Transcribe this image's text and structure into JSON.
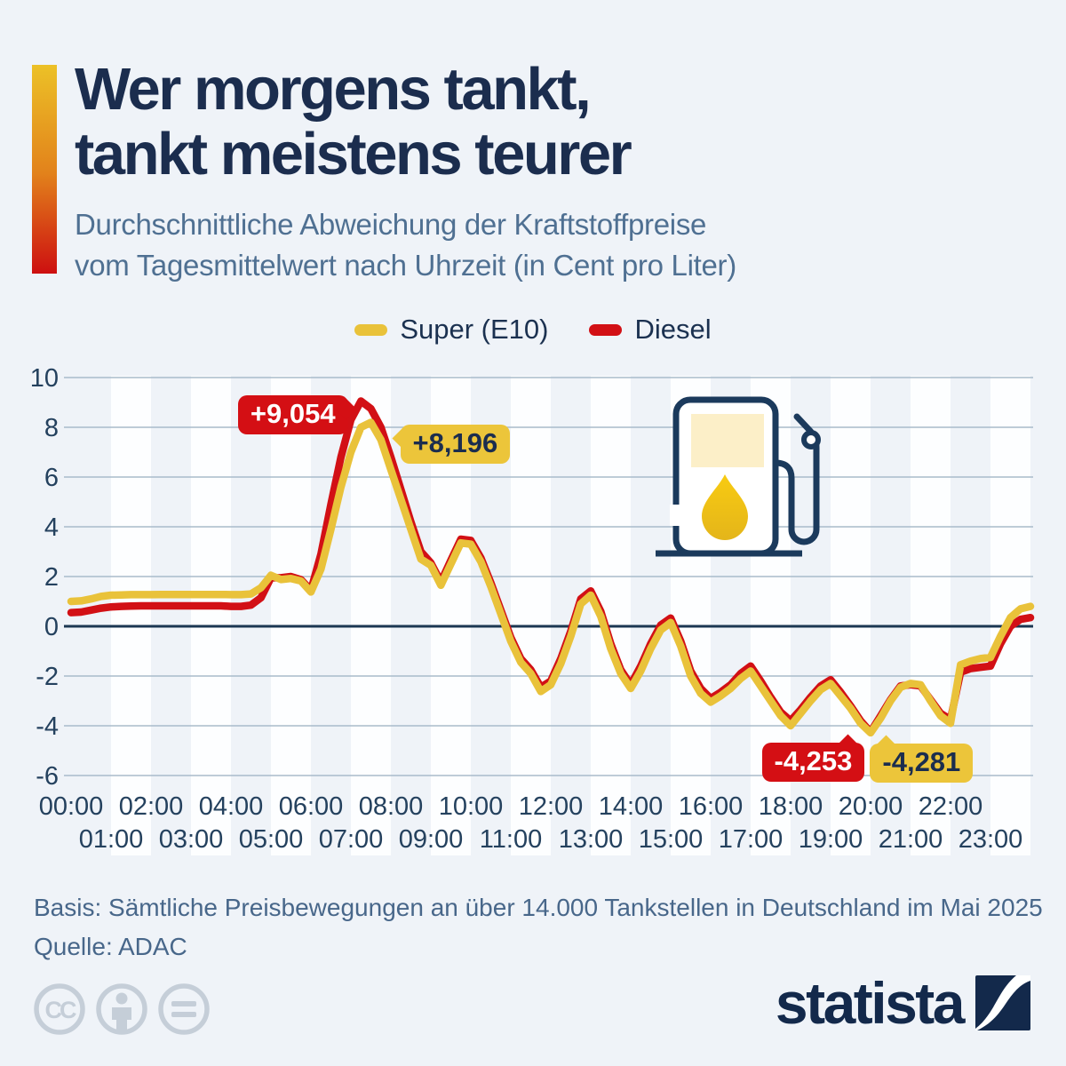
{
  "header": {
    "title_lines": [
      "Wer morgens tankt,",
      "tankt meistens teurer"
    ],
    "subtitle_lines": [
      "Durchschnittliche Abweichung der Kraftstoffpreise",
      "vom Tagesmittelwert nach Uhrzeit (in Cent pro Liter)"
    ]
  },
  "legend": {
    "items": [
      {
        "label": "Super (E10)",
        "color": "#e9c23a"
      },
      {
        "label": "Diesel",
        "color": "#d21015"
      }
    ]
  },
  "chart_data": {
    "type": "line",
    "title": "Durchschnittliche Abweichung der Kraftstoffpreise vom Tagesmittelwert nach Uhrzeit (in Cent pro Liter)",
    "x_unit": "hour_of_day",
    "ylim": [
      -6,
      10
    ],
    "yticks": [
      10,
      8,
      6,
      4,
      2,
      0,
      -2,
      -4,
      -6
    ],
    "xticks": [
      "00:00",
      "01:00",
      "02:00",
      "03:00",
      "04:00",
      "05:00",
      "06:00",
      "07:00",
      "08:00",
      "09:00",
      "10:00",
      "11:00",
      "12:00",
      "13:00",
      "14:00",
      "15:00",
      "16:00",
      "17:00",
      "18:00",
      "19:00",
      "20:00",
      "21:00",
      "22:00",
      "23:00"
    ],
    "grid": true,
    "legend_position": "top-center",
    "x": [
      0,
      0.25,
      0.5,
      0.75,
      1,
      1.25,
      1.5,
      1.75,
      2,
      2.25,
      2.5,
      2.75,
      3,
      3.25,
      3.5,
      3.75,
      4,
      4.25,
      4.5,
      4.75,
      5,
      5.25,
      5.5,
      5.75,
      6,
      6.25,
      6.5,
      6.75,
      7,
      7.25,
      7.5,
      7.75,
      8,
      8.25,
      8.5,
      8.75,
      9,
      9.25,
      9.5,
      9.75,
      10,
      10.25,
      10.5,
      10.75,
      11,
      11.25,
      11.5,
      11.75,
      12,
      12.25,
      12.5,
      12.75,
      13,
      13.25,
      13.5,
      13.75,
      14,
      14.25,
      14.5,
      14.75,
      15,
      15.25,
      15.5,
      15.75,
      16,
      16.25,
      16.5,
      16.75,
      17,
      17.25,
      17.5,
      17.75,
      18,
      18.25,
      18.5,
      18.75,
      19,
      19.25,
      19.5,
      19.75,
      20,
      20.25,
      20.5,
      20.75,
      21,
      21.25,
      21.5,
      21.75,
      22,
      22.25,
      22.5,
      22.75,
      23,
      23.25,
      23.5,
      23.75,
      24
    ],
    "series": [
      {
        "name": "Diesel",
        "color": "#d21015",
        "values": [
          0.55,
          0.57,
          0.65,
          0.73,
          0.78,
          0.8,
          0.81,
          0.82,
          0.82,
          0.82,
          0.82,
          0.82,
          0.82,
          0.82,
          0.82,
          0.82,
          0.8,
          0.8,
          0.85,
          1.15,
          1.95,
          1.95,
          2.0,
          1.87,
          1.45,
          2.9,
          4.9,
          6.8,
          8.3,
          9.054,
          8.75,
          8.0,
          6.8,
          5.5,
          4.2,
          3.0,
          2.55,
          1.78,
          2.65,
          3.5,
          3.45,
          2.75,
          1.75,
          0.65,
          -0.45,
          -1.3,
          -1.75,
          -2.45,
          -2.2,
          -1.3,
          -0.2,
          1.1,
          1.42,
          0.6,
          -0.7,
          -1.75,
          -2.35,
          -1.6,
          -0.7,
          0.05,
          0.33,
          -0.6,
          -1.8,
          -2.5,
          -2.9,
          -2.65,
          -2.35,
          -1.9,
          -1.6,
          -2.2,
          -2.85,
          -3.45,
          -3.8,
          -3.35,
          -2.85,
          -2.4,
          -2.15,
          -2.65,
          -3.2,
          -3.8,
          -4.253,
          -3.6,
          -2.95,
          -2.4,
          -2.35,
          -2.4,
          -2.95,
          -3.5,
          -3.75,
          -1.85,
          -1.7,
          -1.65,
          -1.6,
          -0.7,
          0.0,
          0.28,
          0.35
        ]
      },
      {
        "name": "Super (E10)",
        "color": "#e9c23a",
        "values": [
          1.0,
          1.02,
          1.1,
          1.2,
          1.25,
          1.26,
          1.27,
          1.27,
          1.27,
          1.28,
          1.28,
          1.28,
          1.28,
          1.28,
          1.28,
          1.28,
          1.27,
          1.27,
          1.3,
          1.55,
          2.05,
          1.88,
          1.92,
          1.82,
          1.38,
          2.3,
          3.9,
          5.6,
          7.0,
          8.0,
          8.196,
          7.5,
          6.3,
          5.1,
          3.9,
          2.7,
          2.45,
          1.65,
          2.5,
          3.35,
          3.3,
          2.6,
          1.6,
          0.5,
          -0.6,
          -1.45,
          -1.9,
          -2.62,
          -2.35,
          -1.5,
          -0.4,
          0.9,
          1.25,
          0.4,
          -0.9,
          -1.9,
          -2.5,
          -1.8,
          -0.9,
          -0.15,
          0.15,
          -0.8,
          -2.0,
          -2.7,
          -3.05,
          -2.8,
          -2.5,
          -2.1,
          -1.8,
          -2.4,
          -3.0,
          -3.6,
          -4.0,
          -3.5,
          -3.0,
          -2.55,
          -2.3,
          -2.8,
          -3.3,
          -3.9,
          -4.281,
          -3.7,
          -3.0,
          -2.45,
          -2.3,
          -2.35,
          -3.0,
          -3.6,
          -3.9,
          -1.55,
          -1.4,
          -1.3,
          -1.25,
          -0.4,
          0.35,
          0.7,
          0.8
        ]
      }
    ],
    "annotations": [
      {
        "text": "+9,054",
        "series": "Diesel",
        "value": 9.054,
        "anchor_t": 7.28,
        "placement": "left-of-point"
      },
      {
        "text": "+8,196",
        "series": "Super (E10)",
        "value": 8.196,
        "anchor_t": 7.5,
        "placement": "right-of-point"
      },
      {
        "text": "-4,253",
        "series": "Diesel",
        "value": -4.253,
        "anchor_t": 19.92,
        "placement": "below-left"
      },
      {
        "text": "-4,281",
        "series": "Super (E10)",
        "value": -4.281,
        "anchor_t": 19.92,
        "placement": "below-right"
      }
    ]
  },
  "icons": {
    "fuel_pump": "fuel-pump-icon",
    "license": [
      "cc-icon",
      "attribution-icon",
      "no-derivatives-icon"
    ]
  },
  "footer": {
    "basis": "Basis: Sämtliche Preisbewegungen an über 14.000 Tankstellen in Deutschland im Mai 2025",
    "quelle": "Quelle: ADAC"
  },
  "branding": {
    "wordmark": "statista"
  },
  "colors": {
    "background": "#eff3f8",
    "title": "#1b2d4e",
    "subtitle": "#4f7092",
    "axis_text": "#24415e",
    "gridline": "#a9bbca",
    "zero_line": "#1b3752",
    "stripe": "#fdfeff",
    "super_yellow": "#e9c23a",
    "diesel_red": "#d21015",
    "callout_red": "#d40f14",
    "callout_yellow": "#ecc53a",
    "license_gray": "#c5ced8",
    "brand_navy": "#13294b"
  }
}
